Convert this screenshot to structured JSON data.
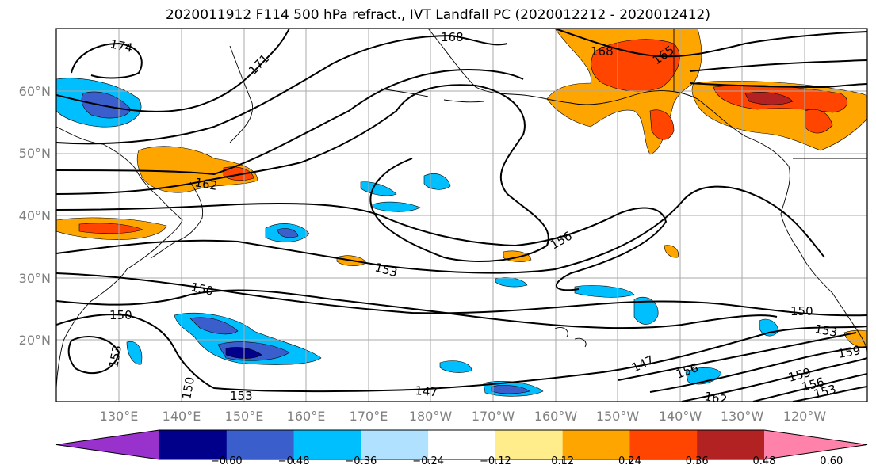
{
  "title": "2020011912 F114 500 hPa refract., IVT Landfall PC (2020012212 - 2020012412)",
  "lat_labels": [
    "60°N",
    "50°N",
    "40°N",
    "30°N",
    "20°N"
  ],
  "lon_labels": [
    "130°E",
    "140°E",
    "150°E",
    "160°E",
    "170°E",
    "180°W",
    "170°W",
    "160°W",
    "150°W",
    "140°W",
    "130°W",
    "120°W"
  ],
  "contour_labels": [
    "174",
    "171",
    "168",
    "168",
    "165",
    "162",
    "156",
    "153",
    "150",
    "150",
    "150",
    "153",
    "159",
    "159",
    "156",
    "153",
    "153",
    "147",
    "147",
    "156",
    "162",
    "153",
    "150"
  ],
  "colorbar": {
    "tick_labels": [
      "−0.60",
      "−0.48",
      "−0.36",
      "−0.24",
      "−0.12",
      "0.12",
      "0.24",
      "0.36",
      "0.48",
      "0.60"
    ],
    "colors": [
      "#9932cc",
      "#00008b",
      "#3a5fcd",
      "#00bfff",
      "#b0e2ff",
      "#ffffff",
      "#ffec8b",
      "#ffa500",
      "#ff4500",
      "#b22222",
      "#ff82ab"
    ]
  }
}
